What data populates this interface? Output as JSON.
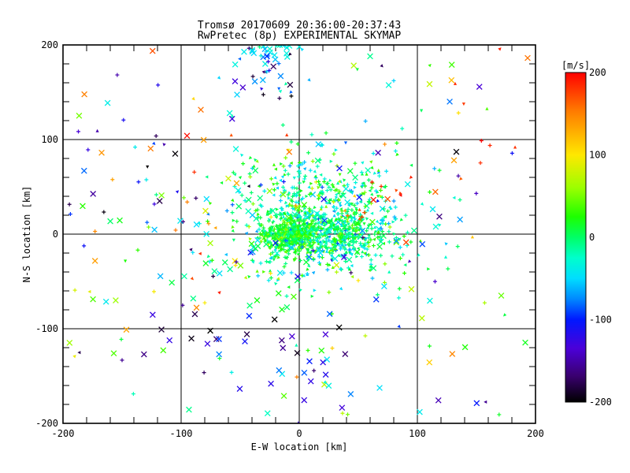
{
  "window": {
    "background": "#FFFFFF",
    "foreground": "#000000"
  },
  "chart_data": {
    "type": "scatter",
    "title": "Tromsø 20170609 20:36:00-20:37:43",
    "subtitle": "RwPretec (8p) EXPERIMENTAL SKYMAP",
    "xlabel": "E-W location [km]",
    "ylabel": "N-S location [km]",
    "xlim": [
      -200,
      200
    ],
    "ylim": [
      -200,
      200
    ],
    "x_ticks": [
      -200,
      -100,
      0,
      100,
      200
    ],
    "y_ticks": [
      -200,
      -100,
      0,
      100,
      200
    ],
    "minor_tick_step_km": 20,
    "grid_values": [
      -100,
      0,
      100
    ],
    "grid_on": true,
    "legend_position": "none",
    "colorbar": {
      "label": "[m/s]",
      "min": -200,
      "max": 200,
      "ticks": [
        200,
        100,
        0,
        -100,
        -200
      ],
      "stops": [
        {
          "v": 200,
          "c": "#FF0000"
        },
        {
          "v": 155,
          "c": "#FF7700"
        },
        {
          "v": 100,
          "c": "#FFE800"
        },
        {
          "v": 60,
          "c": "#9BFF00"
        },
        {
          "v": 25,
          "c": "#1DFF00"
        },
        {
          "v": 0,
          "c": "#00FF66"
        },
        {
          "v": -25,
          "c": "#00FFCC"
        },
        {
          "v": -50,
          "c": "#00DDFF"
        },
        {
          "v": -75,
          "c": "#0088FF"
        },
        {
          "v": -100,
          "c": "#0018FF"
        },
        {
          "v": -135,
          "c": "#4B00D8"
        },
        {
          "v": -168,
          "c": "#3A0070"
        },
        {
          "v": -200,
          "c": "#000000"
        }
      ]
    },
    "seed": 13,
    "marker_styles": {
      "small": "plus-or-triangle",
      "large": "x-cross"
    },
    "clusters": [
      {
        "name": "core",
        "shape": "gauss",
        "cx": 18,
        "cy": 14,
        "sx": 40,
        "sy": 34,
        "n": 700,
        "v": {
          "type": "gauss",
          "mean": -8,
          "sd": 38
        },
        "xfrac": 0.04
      },
      {
        "name": "core-knot",
        "shape": "gauss",
        "cx": -6,
        "cy": -2,
        "sx": 13,
        "sy": 10,
        "n": 430,
        "v": {
          "type": "gauss",
          "mean": 16,
          "sd": 22
        },
        "xfrac": 0.03
      },
      {
        "name": "east-band",
        "shape": "gauss",
        "cx": 30,
        "cy": 3,
        "sx": 22,
        "sy": 12,
        "n": 260,
        "v": {
          "type": "gauss",
          "mean": -5,
          "sd": 30
        },
        "xfrac": 0.03
      },
      {
        "name": "halo",
        "shape": "gauss",
        "cx": 2,
        "cy": -8,
        "sx": 55,
        "sy": 42,
        "n": 80,
        "v": {
          "type": "gauss",
          "mean": -12,
          "sd": 55
        },
        "xfrac": 1
      },
      {
        "name": "top-edge",
        "shape": "gauss",
        "cx": -20,
        "cy": 193,
        "sx": 14,
        "sy": 6,
        "n": 26,
        "v": {
          "type": "gauss",
          "mean": -45,
          "sd": 18
        },
        "xfrac": 0.8
      },
      {
        "name": "top-spray",
        "shape": "gauss",
        "cx": -24,
        "cy": 163,
        "sx": 17,
        "sy": 15,
        "n": 28,
        "v": {
          "type": "gauss",
          "mean": -115,
          "sd": 48
        },
        "xfrac": 0.5
      },
      {
        "name": "red-streak",
        "shape": "line",
        "x1": 35,
        "y1": 18,
        "x2": 168,
        "y2": 95,
        "jitter": 9,
        "n": 20,
        "v": {
          "type": "gauss",
          "mean": 175,
          "sd": 18
        },
        "xfrac": 0.1
      },
      {
        "name": "bottom-dark",
        "shape": "gauss",
        "cx": -45,
        "cy": -108,
        "sx": 45,
        "sy": 16,
        "n": 18,
        "v": {
          "type": "gauss",
          "mean": -150,
          "sd": 45
        },
        "xfrac": 1
      },
      {
        "name": "bottom-mid",
        "shape": "gauss",
        "cx": -5,
        "cy": -150,
        "sx": 40,
        "sy": 25,
        "n": 14,
        "v": {
          "type": "gauss",
          "mean": -60,
          "sd": 90
        },
        "xfrac": 0.7
      },
      {
        "name": "sparse-left",
        "shape": "uniform",
        "x0": -195,
        "x1": -40,
        "y0": -140,
        "y1": 150,
        "n": 55,
        "v": {
          "type": "uniform",
          "lo": -200,
          "hi": 200
        },
        "xfrac": 0.35
      },
      {
        "name": "sparse-all",
        "shape": "uniform",
        "x0": -195,
        "x1": 195,
        "y0": -195,
        "y1": 195,
        "n": 110,
        "v": {
          "type": "uniform",
          "lo": -180,
          "hi": 180
        },
        "xfrac": 0.3
      }
    ],
    "explicit_points": [
      {
        "x": -95,
        "y": 104,
        "v": 195,
        "m": "x"
      },
      {
        "x": -105,
        "y": 85,
        "v": -198,
        "m": "x"
      },
      {
        "x": 133,
        "y": 87,
        "v": -198,
        "m": "x"
      },
      {
        "x": 132,
        "y": 159,
        "v": 185,
        "m": "t"
      },
      {
        "x": 170,
        "y": 196,
        "v": 190,
        "m": "t"
      },
      {
        "x": -157,
        "y": -126,
        "v": 38,
        "m": "x"
      },
      {
        "x": 171,
        "y": -65,
        "v": 45,
        "m": "x"
      },
      {
        "x": 102,
        "y": -188,
        "v": -40,
        "m": "x"
      },
      {
        "x": -8,
        "y": 190,
        "v": -185,
        "m": "t"
      },
      {
        "x": 60,
        "y": 188,
        "v": -10,
        "m": "x"
      }
    ]
  }
}
